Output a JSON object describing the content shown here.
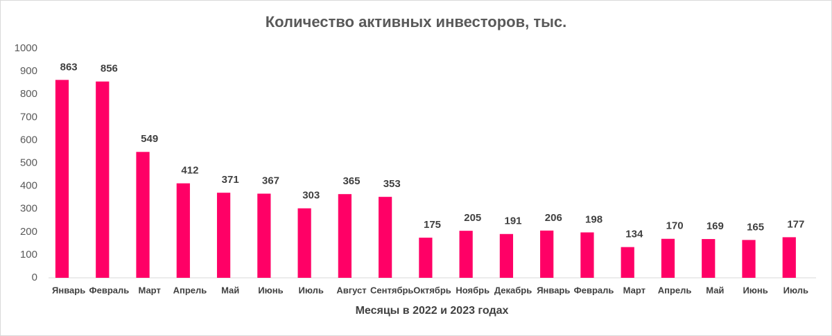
{
  "chart_data": {
    "type": "bar",
    "title": "Количество активных инвесторов, тыс.",
    "x_label": "Месяцы в 2022 и 2023 годах",
    "categories": [
      "Январь",
      "Февраль",
      "Март",
      "Апрель",
      "Май",
      "Июнь",
      "Июль",
      "Август",
      "Сентябрь",
      "Октябрь",
      "Ноябрь",
      "Декабрь",
      "Январь",
      "Февраль",
      "Март",
      "Апрель",
      "Май",
      "Июнь",
      "Июль"
    ],
    "values": [
      863,
      856,
      549,
      412,
      371,
      367,
      303,
      365,
      353,
      175,
      205,
      191,
      206,
      198,
      134,
      170,
      169,
      165,
      177
    ],
    "color": "#ff0066",
    "ylim": [
      0,
      1000
    ],
    "yticks": [
      0,
      100,
      200,
      300,
      400,
      500,
      600,
      700,
      800,
      900,
      1000
    ],
    "grid": false
  }
}
